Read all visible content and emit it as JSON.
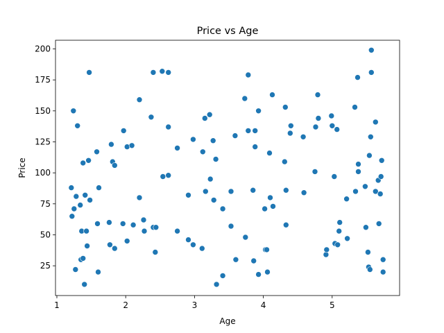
{
  "chart_data": {
    "type": "scatter",
    "title": "Price vs Age",
    "xlabel": "Age",
    "ylabel": "Price",
    "xlim": [
      0.98,
      5.98
    ],
    "ylim": [
      1.0,
      207.0
    ],
    "xticks": [
      1,
      2,
      3,
      4,
      5
    ],
    "yticks": [
      25,
      50,
      75,
      100,
      125,
      150,
      175,
      200
    ],
    "grid": false,
    "marker_color": "#1f77b4",
    "series": [
      {
        "x": [
          1.21,
          1.22,
          1.24,
          1.25,
          1.27,
          1.28,
          1.3,
          1.34,
          1.35,
          1.36,
          1.38,
          1.38,
          1.4,
          1.41,
          1.43,
          1.44,
          1.46,
          1.47,
          1.48,
          1.58,
          1.59,
          1.6,
          1.61,
          1.76,
          1.77,
          1.79,
          1.81,
          1.84,
          1.84,
          1.96,
          1.97,
          2.02,
          2.02,
          2.09,
          2.11,
          2.2,
          2.2,
          2.26,
          2.27,
          2.37,
          2.4,
          2.4,
          2.43,
          2.44,
          2.53,
          2.54,
          2.62,
          2.62,
          2.62,
          2.75,
          2.75,
          2.91,
          2.91,
          2.98,
          2.98,
          3.11,
          3.12,
          3.15,
          3.16,
          3.22,
          3.23,
          3.27,
          3.28,
          3.31,
          3.32,
          3.41,
          3.41,
          3.53,
          3.53,
          3.59,
          3.6,
          3.73,
          3.74,
          3.78,
          3.78,
          3.85,
          3.86,
          3.88,
          3.88,
          3.93,
          3.93,
          4.02,
          4.03,
          4.05,
          4.06,
          4.09,
          4.1,
          4.13,
          4.14,
          4.31,
          4.32,
          4.33,
          4.33,
          4.39,
          4.4,
          4.58,
          4.59,
          4.75,
          4.76,
          4.79,
          4.8,
          4.91,
          4.92,
          4.99,
          5.0,
          5.03,
          5.04,
          5.07,
          5.08,
          5.1,
          5.11,
          5.21,
          5.22,
          5.33,
          5.34,
          5.37,
          5.38,
          5.38,
          5.48,
          5.49,
          5.52,
          5.53,
          5.54,
          5.55,
          5.56,
          5.57,
          5.57,
          5.63,
          5.63,
          5.67,
          5.68,
          5.7,
          5.71,
          5.72,
          5.74,
          5.74
        ],
        "y": [
          88,
          65,
          150,
          71,
          22,
          81,
          138,
          74,
          30,
          53,
          108,
          31,
          10,
          82,
          53,
          41,
          110,
          181,
          78,
          117,
          59,
          20,
          88,
          60,
          42,
          123,
          109,
          106,
          39,
          59,
          134,
          45,
          121,
          122,
          58,
          159,
          80,
          62,
          53,
          145,
          181,
          56,
          36,
          56,
          182,
          97,
          181,
          137,
          98,
          120,
          53,
          82,
          46,
          127,
          42,
          39,
          117,
          144,
          85,
          147,
          95,
          126,
          78,
          111,
          10,
          71,
          17,
          57,
          85,
          130,
          30,
          160,
          48,
          179,
          134,
          86,
          29,
          121,
          134,
          150,
          18,
          71,
          38,
          38,
          20,
          116,
          80,
          163,
          73,
          109,
          153,
          86,
          58,
          132,
          138,
          129,
          84,
          101,
          137,
          163,
          144,
          34,
          38,
          146,
          138,
          97,
          43,
          135,
          42,
          53,
          60,
          79,
          47,
          153,
          85,
          177,
          101,
          107,
          89,
          56,
          36,
          24,
          114,
          22,
          129,
          199,
          181,
          85,
          141,
          94,
          59,
          83,
          97,
          110,
          30,
          20
        ]
      }
    ]
  }
}
